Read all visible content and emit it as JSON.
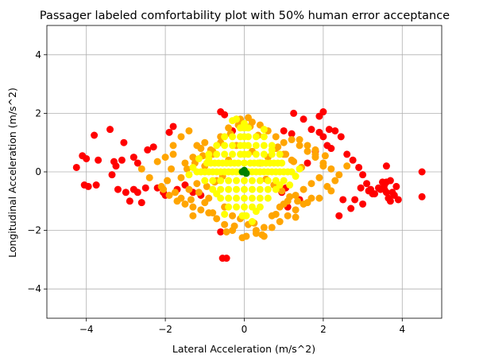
{
  "chart_data": {
    "type": "scatter",
    "title": "Passager labeled comfortability plot with 50% human error acceptance",
    "xlabel": "Lateral Acceleration (m/s^2)",
    "ylabel": "Longitudinal Acceleration (m/s^2)",
    "xlim": [
      -5,
      5
    ],
    "ylim": [
      -5,
      5
    ],
    "xticks": [
      -4,
      -2,
      0,
      2,
      4
    ],
    "yticks": [
      -4,
      -2,
      0,
      2,
      4
    ],
    "xtick_labels": [
      "−4",
      "−2",
      "0",
      "2",
      "4"
    ],
    "ytick_labels": [
      "−4",
      "−2",
      "0",
      "2",
      "4"
    ],
    "grid": true,
    "colors": {
      "red": "#ff0000",
      "orange": "#ffa500",
      "yellow": "#ffff00",
      "green": "#008000"
    },
    "series": [
      {
        "color": "#ff0000",
        "x": [
          -4.25,
          -4.05,
          -3.95,
          -3.75,
          -3.7,
          -4.1,
          -4.0,
          -3.8,
          -3.4,
          -3.3,
          -3.25,
          -3.1,
          -3.05,
          -2.8,
          -2.7,
          -2.6,
          -2.5,
          -2.2,
          -2.05,
          -2.0,
          -1.9,
          -1.8,
          -2.8,
          -2.7,
          -2.9,
          -3.0,
          -3.2,
          -3.35,
          -1.7,
          -1.5,
          -1.3,
          -1.1,
          -2.3,
          -2.45,
          -0.6,
          -0.55,
          -0.45,
          -0.6,
          -0.5,
          -0.3,
          2.0,
          2.15,
          2.3,
          2.45,
          2.6,
          2.75,
          2.9,
          3.0,
          3.1,
          3.2,
          3.3,
          3.4,
          3.5,
          3.55,
          3.6,
          3.65,
          3.7,
          3.75,
          3.8,
          3.85,
          3.9,
          3.6,
          3.7,
          3.55,
          4.5,
          4.5,
          2.1,
          2.2,
          1.9,
          1.7,
          1.8,
          1.6,
          2.5,
          2.8,
          3.0,
          3.25,
          2.95,
          3.15,
          1.0,
          1.2,
          1.25,
          1.5,
          1.9,
          2.0,
          2.4,
          1.05,
          0.95,
          1.4,
          1.1,
          2.7,
          3.45,
          3.6
        ],
        "y": [
          0.15,
          -0.45,
          -0.5,
          -0.45,
          0.4,
          0.55,
          0.45,
          1.25,
          1.45,
          0.35,
          0.2,
          0.4,
          1.0,
          -0.6,
          -0.7,
          -1.05,
          -0.55,
          -0.55,
          -0.7,
          -0.8,
          1.35,
          1.55,
          0.5,
          0.3,
          -1.0,
          -0.7,
          -0.6,
          -0.1,
          -0.6,
          -0.45,
          -0.7,
          -0.8,
          0.85,
          0.75,
          -2.05,
          -2.95,
          -2.95,
          2.05,
          1.95,
          1.4,
          2.05,
          1.45,
          1.4,
          1.2,
          0.6,
          0.4,
          0.15,
          -0.1,
          -0.4,
          -0.6,
          -0.75,
          -0.55,
          -0.35,
          -0.6,
          -0.7,
          -0.9,
          -1.0,
          -0.7,
          -0.8,
          -0.5,
          -0.95,
          0.2,
          -0.3,
          -0.45,
          0.0,
          -0.85,
          0.9,
          0.8,
          1.35,
          1.45,
          0.7,
          0.3,
          -0.95,
          -0.95,
          -1.1,
          -0.75,
          -0.55,
          -0.65,
          1.4,
          1.3,
          2.0,
          1.8,
          1.9,
          1.2,
          -1.5,
          -0.55,
          -0.7,
          -0.95,
          -1.2,
          -1.25,
          -0.6,
          -0.35
        ]
      },
      {
        "color": "#ffa500",
        "x": [
          -2.1,
          -1.95,
          -1.85,
          -1.75,
          -1.6,
          -1.5,
          -1.4,
          -1.3,
          -1.2,
          -1.1,
          -1.0,
          -0.9,
          -0.8,
          -0.7,
          -0.6,
          -0.5,
          -0.4,
          -0.3,
          -0.2,
          -0.1,
          0.0,
          0.1,
          0.2,
          0.3,
          0.4,
          0.5,
          0.6,
          0.7,
          0.8,
          0.9,
          1.0,
          1.1,
          1.2,
          1.3,
          1.4,
          1.5,
          1.6,
          1.7,
          1.8,
          1.9,
          2.0,
          2.1,
          2.2,
          2.3,
          -2.0,
          -1.8,
          -1.6,
          -1.4,
          -1.2,
          -1.0,
          -0.8,
          -0.6,
          -0.4,
          -0.2,
          0.2,
          0.4,
          0.6,
          0.8,
          1.0,
          1.2,
          1.4,
          1.6,
          1.8,
          2.0,
          -1.7,
          -1.5,
          -1.3,
          -1.1,
          -0.9,
          -0.7,
          -0.5,
          -0.3,
          0.3,
          0.5,
          0.7,
          0.9,
          1.1,
          1.3,
          1.5,
          1.7,
          -2.6,
          -2.4,
          2.4,
          2.6,
          -1.9,
          -1.6,
          -1.35,
          -1.15,
          -0.95,
          -0.75,
          -0.55,
          0.55,
          0.75,
          0.95,
          1.15,
          1.35,
          1.6,
          1.9,
          -1.45,
          -1.25,
          -1.05,
          -0.85,
          0.85,
          1.05,
          1.25,
          1.45,
          -2.2,
          -2.05,
          2.05,
          2.2,
          -0.35,
          -0.15,
          0.15,
          0.35,
          -0.45,
          0.45,
          -1.0,
          1.0,
          -1.8,
          1.8,
          -0.25,
          0.25,
          0.8,
          -0.8,
          1.3,
          -1.3,
          0.1,
          -0.1,
          -0.05,
          0.05
        ],
        "y": [
          -0.5,
          -0.3,
          0.1,
          -0.7,
          -0.2,
          0.3,
          -0.6,
          0.5,
          -0.4,
          0.8,
          0.2,
          -0.9,
          0.6,
          -0.3,
          1.0,
          -1.2,
          0.4,
          -1.5,
          0.9,
          -1.6,
          0.0,
          -1.8,
          0.7,
          -2.0,
          0.3,
          -1.9,
          0.5,
          -1.5,
          0.8,
          -1.2,
          0.6,
          -1.0,
          0.4,
          -0.8,
          1.1,
          -0.6,
          0.9,
          -0.4,
          0.5,
          -0.2,
          0.3,
          -0.5,
          0.1,
          -0.3,
          0.5,
          0.9,
          1.2,
          1.4,
          0.9,
          1.0,
          0.7,
          1.2,
          1.5,
          1.8,
          1.7,
          1.6,
          1.4,
          1.2,
          1.0,
          1.1,
          0.9,
          0.7,
          0.6,
          0.2,
          -1.0,
          -1.1,
          -1.2,
          -1.3,
          -1.4,
          -1.6,
          -1.8,
          -2.0,
          -2.1,
          -2.2,
          -1.9,
          -1.7,
          -1.5,
          -1.3,
          -1.1,
          -0.9,
          0.1,
          -0.2,
          -0.1,
          0.2,
          -0.8,
          -0.9,
          -0.95,
          -0.7,
          -0.5,
          -0.35,
          -0.15,
          -0.25,
          -0.45,
          -0.65,
          -0.85,
          -1.0,
          -1.05,
          -0.9,
          0.1,
          0.3,
          0.55,
          0.75,
          0.85,
          0.6,
          0.35,
          0.15,
          0.35,
          -0.6,
          0.55,
          -0.65,
          1.3,
          1.6,
          1.55,
          1.25,
          -2.05,
          -2.15,
          -1.05,
          -1.1,
          0.6,
          0.75,
          -1.85,
          -1.75,
          -1.45,
          -1.4,
          -1.55,
          -1.5,
          1.85,
          1.8,
          -2.25,
          -2.2
        ]
      },
      {
        "color": "#ffff00",
        "x": [
          0.0,
          -0.1,
          0.1,
          -0.2,
          0.2,
          -0.3,
          0.3,
          -0.4,
          0.4,
          -0.5,
          0.5,
          -0.6,
          0.6,
          -0.7,
          0.7,
          -0.8,
          0.8,
          -0.9,
          0.9,
          -1.0,
          1.0,
          -1.1,
          1.1,
          -1.2,
          1.2,
          0.0,
          -0.15,
          0.15,
          -0.25,
          0.25,
          -0.35,
          0.35,
          -0.45,
          0.45,
          -0.55,
          0.55,
          -0.65,
          0.65,
          -0.75,
          0.75,
          -0.85,
          0.85,
          -0.95,
          0.95,
          0.0,
          -0.2,
          0.2,
          -0.4,
          0.4,
          -0.6,
          0.6,
          -0.8,
          0.8,
          -1.0,
          1.0,
          0.0,
          -0.1,
          0.1,
          -0.3,
          0.3,
          -0.5,
          0.5,
          -0.7,
          0.7,
          -0.9,
          0.9,
          0.0,
          -0.2,
          0.2,
          -0.4,
          0.4,
          -0.6,
          0.6,
          -0.8,
          0.8,
          0.0,
          -0.1,
          0.1,
          -0.3,
          0.3,
          -0.5,
          0.5,
          -0.7,
          0.7,
          0.0,
          -0.2,
          0.2,
          -0.4,
          0.4,
          -0.6,
          0.6,
          0.0,
          -0.1,
          0.1,
          -0.3,
          0.3,
          -0.5,
          0.5,
          0.0,
          -0.2,
          0.2,
          -0.4,
          0.4,
          0.0,
          -0.1,
          0.1,
          0.0,
          -0.05,
          0.05,
          -1.3,
          1.3,
          -1.15,
          1.15,
          -0.5,
          0.5,
          -0.3,
          0.3,
          0.0,
          -0.7,
          0.7,
          -0.9,
          0.9,
          1.4,
          -1.4,
          0.2,
          -0.2
        ],
        "y": [
          0.0,
          0.0,
          0.0,
          0.0,
          0.0,
          0.0,
          0.0,
          0.0,
          0.0,
          0.0,
          0.0,
          0.0,
          0.0,
          0.0,
          0.0,
          0.0,
          0.0,
          0.0,
          0.0,
          0.0,
          0.0,
          0.0,
          0.0,
          0.0,
          0.0,
          0.3,
          0.3,
          0.3,
          0.3,
          0.3,
          0.3,
          0.3,
          0.3,
          0.3,
          0.3,
          0.3,
          0.3,
          0.3,
          0.3,
          0.3,
          0.3,
          0.3,
          0.3,
          0.3,
          -0.3,
          -0.3,
          -0.3,
          -0.3,
          -0.3,
          -0.3,
          -0.3,
          -0.3,
          -0.3,
          -0.3,
          -0.3,
          0.6,
          0.6,
          0.6,
          0.6,
          0.6,
          0.6,
          0.6,
          0.6,
          0.6,
          0.6,
          0.6,
          -0.6,
          -0.6,
          -0.6,
          -0.6,
          -0.6,
          -0.6,
          -0.6,
          -0.6,
          -0.6,
          0.9,
          0.9,
          0.9,
          0.9,
          0.9,
          0.9,
          0.9,
          0.9,
          0.9,
          -0.9,
          -0.9,
          -0.9,
          -0.9,
          -0.9,
          -0.9,
          -0.9,
          1.2,
          1.2,
          1.2,
          1.2,
          1.2,
          1.2,
          1.2,
          -1.2,
          -1.2,
          -1.2,
          -1.2,
          -1.2,
          1.5,
          1.5,
          1.5,
          -1.5,
          -1.5,
          -1.5,
          0.15,
          -0.15,
          0.45,
          -0.45,
          -1.45,
          1.45,
          1.75,
          -1.35,
          1.65,
          -0.75,
          0.75,
          0.45,
          -0.45,
          0.1,
          -0.1,
          -1.7,
          1.8
        ]
      },
      {
        "color": "#008000",
        "x": [
          0.0,
          0.05,
          -0.05
        ],
        "y": [
          0.05,
          -0.05,
          0.0
        ]
      }
    ]
  }
}
